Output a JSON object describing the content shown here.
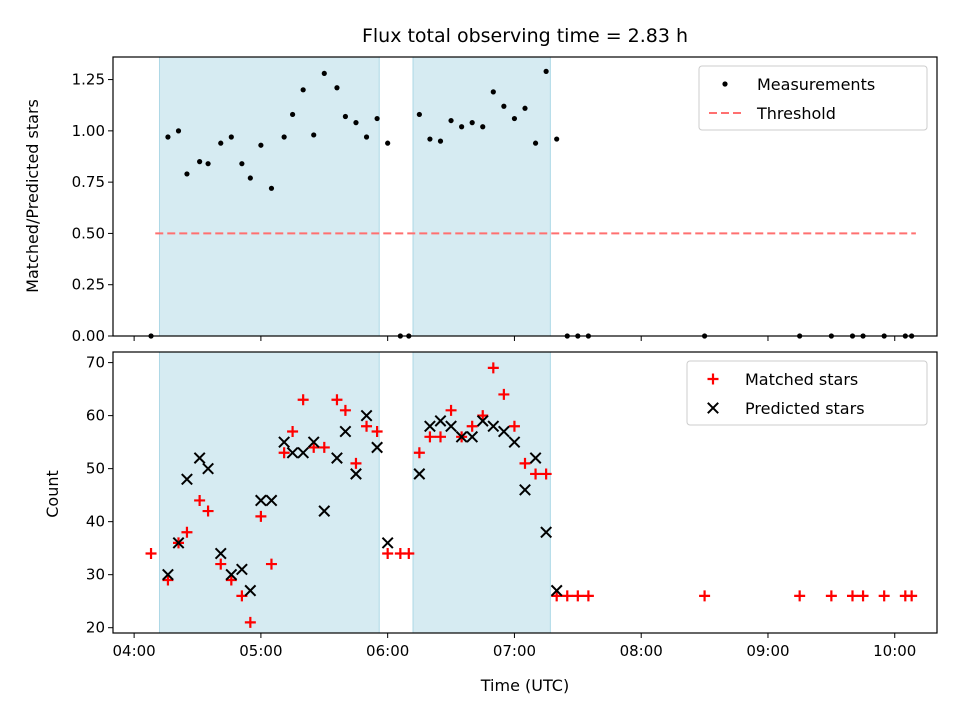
{
  "chart_data": [
    {
      "type": "scatter",
      "title": "Flux total observing time = 2.83 h",
      "xlabel": "",
      "ylabel": "Matched/Predicted stars",
      "xlim": [
        "03:50",
        "10:20"
      ],
      "ylim": [
        0,
        1.36
      ],
      "yticks": [
        0.0,
        0.25,
        0.5,
        0.75,
        1.0,
        1.25
      ],
      "ytick_labels": [
        "0.00",
        "0.25",
        "0.50",
        "0.75",
        "1.00",
        "1.25"
      ],
      "legend_position": "top-right",
      "shaded_intervals": [
        [
          "04:12",
          "05:56"
        ],
        [
          "06:12",
          "07:17"
        ]
      ],
      "series": [
        {
          "name": "Measurements",
          "marker": "dot",
          "color": "#000000",
          "points": [
            [
              "04:08",
              0.0
            ],
            [
              "04:16",
              0.97
            ],
            [
              "04:21",
              1.0
            ],
            [
              "04:25",
              0.79
            ],
            [
              "04:31",
              0.85
            ],
            [
              "04:35",
              0.84
            ],
            [
              "04:41",
              0.94
            ],
            [
              "04:46",
              0.97
            ],
            [
              "04:51",
              0.84
            ],
            [
              "04:55",
              0.77
            ],
            [
              "05:00",
              0.93
            ],
            [
              "05:05",
              0.72
            ],
            [
              "05:11",
              0.97
            ],
            [
              "05:15",
              1.08
            ],
            [
              "05:20",
              1.2
            ],
            [
              "05:25",
              0.98
            ],
            [
              "05:30",
              1.28
            ],
            [
              "05:36",
              1.21
            ],
            [
              "05:40",
              1.07
            ],
            [
              "05:45",
              1.04
            ],
            [
              "05:50",
              0.97
            ],
            [
              "05:55",
              1.06
            ],
            [
              "06:00",
              0.94
            ],
            [
              "06:06",
              0.0
            ],
            [
              "06:10",
              0.0
            ],
            [
              "06:15",
              1.08
            ],
            [
              "06:20",
              0.96
            ],
            [
              "06:25",
              0.95
            ],
            [
              "06:30",
              1.05
            ],
            [
              "06:35",
              1.02
            ],
            [
              "06:40",
              1.04
            ],
            [
              "06:45",
              1.02
            ],
            [
              "06:50",
              1.19
            ],
            [
              "06:55",
              1.12
            ],
            [
              "07:00",
              1.06
            ],
            [
              "07:05",
              1.11
            ],
            [
              "07:10",
              0.94
            ],
            [
              "07:15",
              1.29
            ],
            [
              "07:20",
              0.96
            ],
            [
              "07:25",
              0.0
            ],
            [
              "07:30",
              0.0
            ],
            [
              "07:35",
              0.0
            ],
            [
              "08:30",
              0.0
            ],
            [
              "09:15",
              0.0
            ],
            [
              "09:30",
              0.0
            ],
            [
              "09:40",
              0.0
            ],
            [
              "09:45",
              0.0
            ],
            [
              "09:55",
              0.0
            ],
            [
              "10:05",
              0.0
            ],
            [
              "10:08",
              0.0
            ]
          ]
        },
        {
          "name": "Threshold",
          "marker": "dashed-line",
          "color": "#ff7070",
          "points": [
            [
              "04:10",
              0.5
            ],
            [
              "10:10",
              0.5
            ]
          ]
        }
      ]
    },
    {
      "type": "scatter",
      "title": "",
      "xlabel": "Time (UTC)",
      "ylabel": "Count",
      "xlim": [
        "03:50",
        "10:20"
      ],
      "ylim": [
        19,
        72
      ],
      "yticks": [
        20,
        30,
        40,
        50,
        60,
        70
      ],
      "ytick_labels": [
        "20",
        "30",
        "40",
        "50",
        "60",
        "70"
      ],
      "xticks": [
        "04:00",
        "05:00",
        "06:00",
        "07:00",
        "08:00",
        "09:00",
        "10:00"
      ],
      "legend_position": "top-right",
      "shaded_intervals": [
        [
          "04:12",
          "05:56"
        ],
        [
          "06:12",
          "07:17"
        ]
      ],
      "series": [
        {
          "name": "Matched stars",
          "marker": "plus",
          "color": "#ff0000",
          "points": [
            [
              "04:08",
              34
            ],
            [
              "04:16",
              29
            ],
            [
              "04:21",
              36
            ],
            [
              "04:25",
              38
            ],
            [
              "04:31",
              44
            ],
            [
              "04:35",
              42
            ],
            [
              "04:41",
              32
            ],
            [
              "04:46",
              29
            ],
            [
              "04:51",
              26
            ],
            [
              "04:55",
              21
            ],
            [
              "05:00",
              41
            ],
            [
              "05:05",
              32
            ],
            [
              "05:11",
              53
            ],
            [
              "05:15",
              57
            ],
            [
              "05:20",
              63
            ],
            [
              "05:25",
              54
            ],
            [
              "05:30",
              54
            ],
            [
              "05:36",
              63
            ],
            [
              "05:40",
              61
            ],
            [
              "05:45",
              51
            ],
            [
              "05:50",
              58
            ],
            [
              "05:55",
              57
            ],
            [
              "06:00",
              34
            ],
            [
              "06:06",
              34
            ],
            [
              "06:10",
              34
            ],
            [
              "06:15",
              53
            ],
            [
              "06:20",
              56
            ],
            [
              "06:25",
              56
            ],
            [
              "06:30",
              61
            ],
            [
              "06:35",
              56
            ],
            [
              "06:40",
              58
            ],
            [
              "06:45",
              60
            ],
            [
              "06:50",
              69
            ],
            [
              "06:55",
              64
            ],
            [
              "07:00",
              58
            ],
            [
              "07:05",
              51
            ],
            [
              "07:10",
              49
            ],
            [
              "07:15",
              49
            ],
            [
              "07:20",
              26
            ],
            [
              "07:25",
              26
            ],
            [
              "07:30",
              26
            ],
            [
              "07:35",
              26
            ],
            [
              "08:30",
              26
            ],
            [
              "09:15",
              26
            ],
            [
              "09:30",
              26
            ],
            [
              "09:40",
              26
            ],
            [
              "09:45",
              26
            ],
            [
              "09:55",
              26
            ],
            [
              "10:05",
              26
            ],
            [
              "10:08",
              26
            ]
          ]
        },
        {
          "name": "Predicted stars",
          "marker": "x",
          "color": "#000000",
          "points": [
            [
              "04:16",
              30
            ],
            [
              "04:21",
              36
            ],
            [
              "04:25",
              48
            ],
            [
              "04:31",
              52
            ],
            [
              "04:35",
              50
            ],
            [
              "04:41",
              34
            ],
            [
              "04:46",
              30
            ],
            [
              "04:51",
              31
            ],
            [
              "04:55",
              27
            ],
            [
              "05:00",
              44
            ],
            [
              "05:05",
              44
            ],
            [
              "05:11",
              55
            ],
            [
              "05:15",
              53
            ],
            [
              "05:20",
              53
            ],
            [
              "05:25",
              55
            ],
            [
              "05:30",
              42
            ],
            [
              "05:36",
              52
            ],
            [
              "05:40",
              57
            ],
            [
              "05:45",
              49
            ],
            [
              "05:50",
              60
            ],
            [
              "05:55",
              54
            ],
            [
              "06:00",
              36
            ],
            [
              "06:15",
              49
            ],
            [
              "06:20",
              58
            ],
            [
              "06:25",
              59
            ],
            [
              "06:30",
              58
            ],
            [
              "06:35",
              56
            ],
            [
              "06:40",
              56
            ],
            [
              "06:45",
              59
            ],
            [
              "06:50",
              58
            ],
            [
              "06:55",
              57
            ],
            [
              "07:00",
              55
            ],
            [
              "07:05",
              46
            ],
            [
              "07:10",
              52
            ],
            [
              "07:15",
              38
            ],
            [
              "07:20",
              27
            ]
          ]
        }
      ]
    }
  ]
}
